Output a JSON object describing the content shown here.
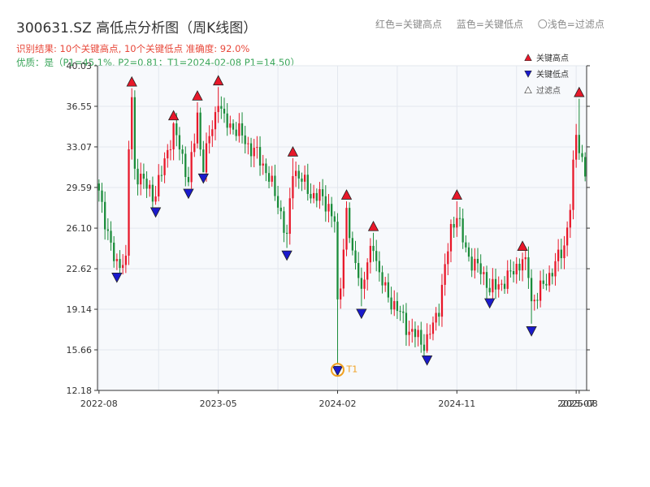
{
  "title": "300631.SZ 高低点分析图（周K线图）",
  "result_text": "识别结果: 10个关键高点, 10个关键低点   准确度: 92.0%",
  "quality_text": "优质：是（P1=45.1%, P2=0.81；T1=2024-02-08 P1=14.50）",
  "top_legend": {
    "red": "红色=关键高点",
    "blue": "蓝色=关键低点",
    "light": "〇浅色=过滤点"
  },
  "colors": {
    "up": "#e8182a",
    "down": "#1a8c3a",
    "high_marker": "#e8182a",
    "low_marker": "#1a1acc",
    "t1_marker": "#f0a020",
    "plot_bg": "#f7f9fc",
    "grid": "#e3e7ee"
  },
  "chart_data": {
    "type": "candlestick",
    "ylim": [
      12.18,
      40.03
    ],
    "y_ticks": [
      12.18,
      15.66,
      19.14,
      22.62,
      26.1,
      29.59,
      33.07,
      36.55,
      40.03
    ],
    "x_ticks": [
      {
        "label": "2022-08",
        "idx": 0
      },
      {
        "label": "2023-05",
        "idx": 40
      },
      {
        "label": "2024-02",
        "idx": 80
      },
      {
        "label": "2024-11",
        "idx": 120
      },
      {
        "label": "2025-07",
        "idx": 160
      },
      {
        "label": "2025-08",
        "idx": 161
      }
    ],
    "x_range": [
      0,
      163
    ],
    "grid": true,
    "legend_placement": "top-right",
    "legend": [
      {
        "label": "关键高点",
        "marker": "up-triangle",
        "color": "#e8182a"
      },
      {
        "label": "关键低点",
        "marker": "down-triangle",
        "color": "#1a1acc"
      },
      {
        "label": "过滤点",
        "marker": "hollow-triangle",
        "color": "#ffffff"
      }
    ],
    "key_highs": [
      {
        "idx": 11,
        "price": 38.1
      },
      {
        "idx": 25,
        "price": 35.2
      },
      {
        "idx": 33,
        "price": 36.9
      },
      {
        "idx": 40,
        "price": 38.2
      },
      {
        "idx": 65,
        "price": 32.1
      },
      {
        "idx": 83,
        "price": 28.4
      },
      {
        "idx": 92,
        "price": 25.7
      },
      {
        "idx": 120,
        "price": 28.4
      },
      {
        "idx": 142,
        "price": 24.0
      },
      {
        "idx": 161,
        "price": 37.2
      }
    ],
    "key_lows": [
      {
        "idx": 6,
        "price": 22.5
      },
      {
        "idx": 19,
        "price": 28.1
      },
      {
        "idx": 30,
        "price": 29.7
      },
      {
        "idx": 35,
        "price": 31.0
      },
      {
        "idx": 63,
        "price": 24.4
      },
      {
        "idx": 80,
        "price": 14.5
      },
      {
        "idx": 88,
        "price": 19.4
      },
      {
        "idx": 110,
        "price": 15.4
      },
      {
        "idx": 131,
        "price": 20.3
      },
      {
        "idx": 145,
        "price": 17.9
      }
    ],
    "t1": {
      "idx": 80,
      "price": 14.5,
      "label": "T1"
    },
    "anchors": [
      [
        0,
        29.0
      ],
      [
        3,
        25.8
      ],
      [
        5,
        23.4
      ],
      [
        6,
        22.8
      ],
      [
        8,
        23.5
      ],
      [
        9,
        23.2
      ],
      [
        10,
        33.0
      ],
      [
        11,
        37.0
      ],
      [
        12,
        31.0
      ],
      [
        14,
        30.5
      ],
      [
        16,
        29.6
      ],
      [
        18,
        29.0
      ],
      [
        19,
        29.2
      ],
      [
        21,
        30.8
      ],
      [
        23,
        32.8
      ],
      [
        25,
        34.6
      ],
      [
        27,
        33.0
      ],
      [
        29,
        31.2
      ],
      [
        30,
        30.2
      ],
      [
        32,
        33.6
      ],
      [
        33,
        35.8
      ],
      [
        34,
        33.0
      ],
      [
        35,
        31.6
      ],
      [
        37,
        33.8
      ],
      [
        39,
        35.8
      ],
      [
        40,
        37.3
      ],
      [
        42,
        35.2
      ],
      [
        45,
        34.8
      ],
      [
        48,
        34.0
      ],
      [
        50,
        33.2
      ],
      [
        53,
        32.4
      ],
      [
        56,
        31.1
      ],
      [
        59,
        29.0
      ],
      [
        61,
        27.4
      ],
      [
        63,
        25.1
      ],
      [
        65,
        31.2
      ],
      [
        67,
        30.6
      ],
      [
        69,
        29.8
      ],
      [
        71,
        29.0
      ],
      [
        74,
        28.8
      ],
      [
        77,
        28.0
      ],
      [
        79,
        26.6
      ],
      [
        80,
        19.2
      ],
      [
        81,
        21.5
      ],
      [
        83,
        27.6
      ],
      [
        85,
        23.5
      ],
      [
        87,
        22.6
      ],
      [
        88,
        20.6
      ],
      [
        90,
        23.0
      ],
      [
        92,
        24.9
      ],
      [
        94,
        22.0
      ],
      [
        96,
        20.8
      ],
      [
        99,
        19.4
      ],
      [
        102,
        18.4
      ],
      [
        104,
        17.2
      ],
      [
        107,
        16.8
      ],
      [
        109,
        16.2
      ],
      [
        110,
        16.4
      ],
      [
        112,
        17.8
      ],
      [
        114,
        19.4
      ],
      [
        116,
        22.6
      ],
      [
        118,
        26.0
      ],
      [
        120,
        27.4
      ],
      [
        122,
        25.0
      ],
      [
        124,
        23.6
      ],
      [
        126,
        23.0
      ],
      [
        128,
        22.4
      ],
      [
        130,
        21.6
      ],
      [
        131,
        20.8
      ],
      [
        134,
        21.2
      ],
      [
        137,
        21.8
      ],
      [
        140,
        22.8
      ],
      [
        142,
        23.4
      ],
      [
        144,
        22.2
      ],
      [
        145,
        19.8
      ],
      [
        147,
        20.4
      ],
      [
        150,
        21.6
      ],
      [
        153,
        23.0
      ],
      [
        156,
        24.6
      ],
      [
        158,
        28.0
      ],
      [
        160,
        34.2
      ],
      [
        161,
        33.0
      ],
      [
        163,
        31.0
      ]
    ]
  }
}
